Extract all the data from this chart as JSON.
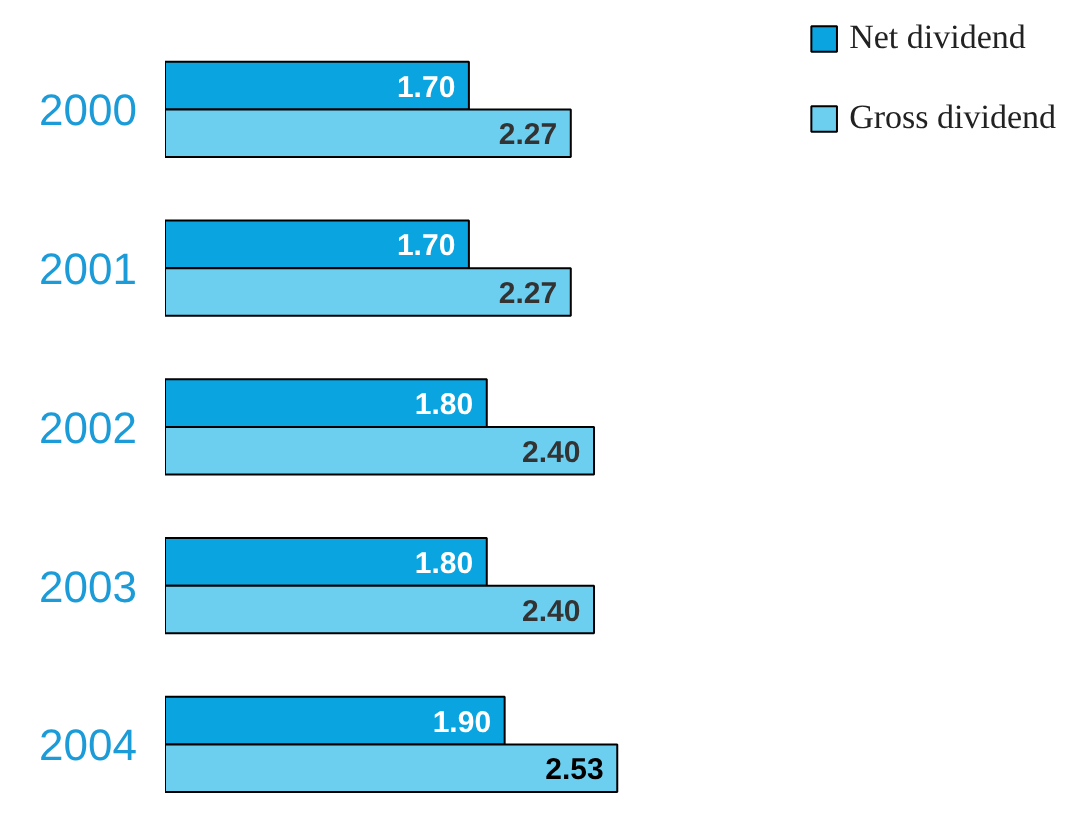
{
  "chart_data": {
    "type": "bar",
    "orientation": "horizontal",
    "categories": [
      "2000",
      "2001",
      "2002",
      "2003",
      "2004"
    ],
    "series": [
      {
        "name": "Net dividend",
        "color": "#0aa5e0",
        "values": [
          1.7,
          1.7,
          1.8,
          1.8,
          1.9
        ],
        "value_labels": [
          "1.70",
          "1.70",
          "1.80",
          "1.80",
          "1.90"
        ]
      },
      {
        "name": "Gross dividend",
        "color": "#6dcff0",
        "values": [
          2.27,
          2.27,
          2.4,
          2.4,
          2.53
        ],
        "value_labels": [
          "2.27",
          "2.27",
          "2.40",
          "2.40",
          "2.53"
        ]
      }
    ],
    "legend": "top right",
    "tick_labels": "y"
  }
}
